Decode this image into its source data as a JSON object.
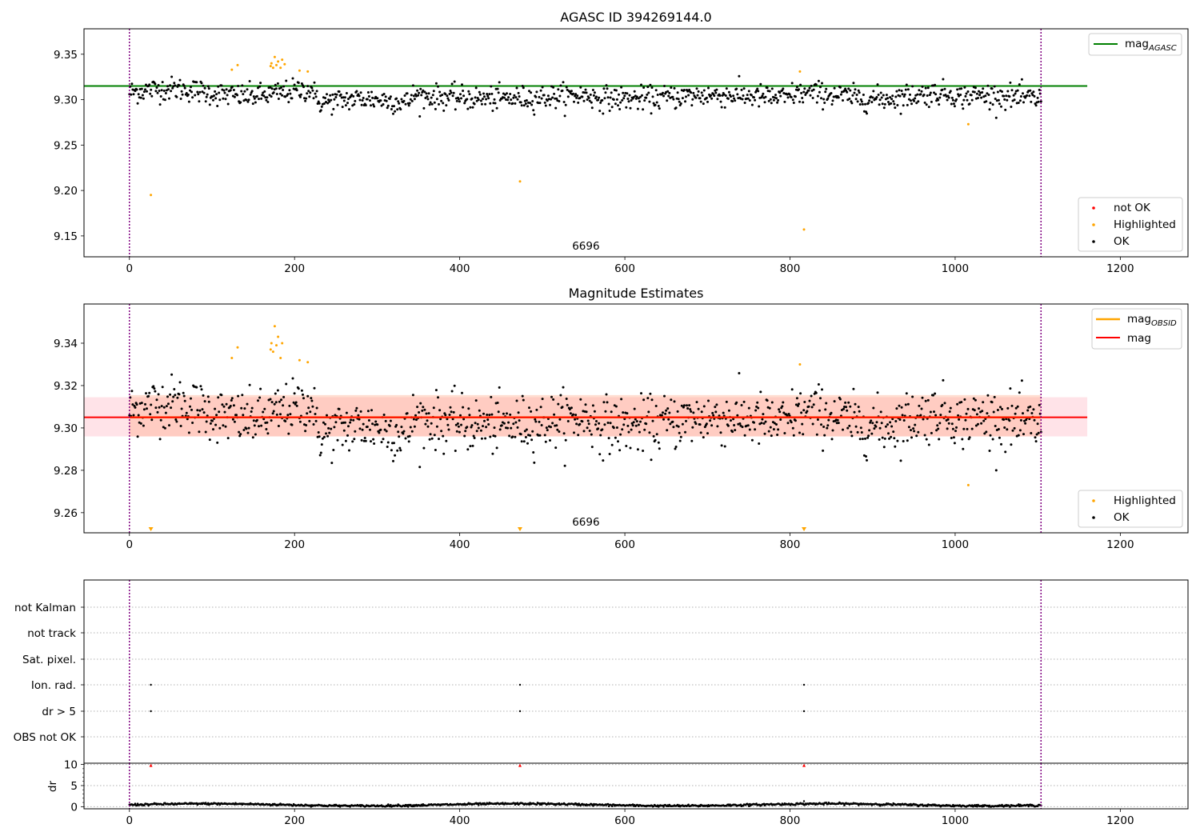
{
  "chart_data": [
    {
      "type": "scatter",
      "panel": "agasc",
      "title": "AGASC ID 394269144.0",
      "xlim": [
        -55,
        1282
      ],
      "ylim": [
        9.127,
        9.378
      ],
      "xticks": [
        0,
        200,
        400,
        600,
        800,
        1000,
        1200
      ],
      "yticks": [
        9.15,
        9.2,
        9.25,
        9.3,
        9.35
      ],
      "ytick_labels": [
        "9.15",
        "9.20",
        "9.25",
        "9.30",
        "9.35"
      ],
      "obs_bounds": [
        0,
        1104
      ],
      "obs_label": {
        "text": "6696",
        "x": 552
      },
      "reference_lines": [
        {
          "name": "mag_AGASC",
          "label_main": "mag",
          "label_sub": "AGASC",
          "y": 9.315,
          "x_range": [
            -55,
            1160
          ],
          "color": "#008000"
        }
      ],
      "highlighted_points": [
        [
          26,
          9.195
        ],
        [
          124,
          9.333
        ],
        [
          131,
          9.338
        ],
        [
          171,
          9.337
        ],
        [
          172,
          9.34
        ],
        [
          174,
          9.335
        ],
        [
          176,
          9.347
        ],
        [
          178,
          9.338
        ],
        [
          180,
          9.342
        ],
        [
          183,
          9.335
        ],
        [
          185,
          9.344
        ],
        [
          188,
          9.339
        ],
        [
          206,
          9.332
        ],
        [
          216,
          9.331
        ],
        [
          473,
          9.21
        ],
        [
          812,
          9.331
        ],
        [
          817,
          9.157
        ],
        [
          1016,
          9.273
        ]
      ],
      "ok_series": {
        "name": "OK",
        "x_range": [
          0,
          1104
        ],
        "count": 1100,
        "center": 9.305,
        "spread": 0.008
      },
      "legend_lower": [
        {
          "label": "not OK",
          "color": "#ff0000"
        },
        {
          "label": "Highlighted",
          "color": "#ffa500"
        },
        {
          "label": "OK",
          "color": "#000000"
        }
      ]
    },
    {
      "type": "scatter",
      "panel": "estimates",
      "title": "Magnitude Estimates",
      "xlim": [
        -55,
        1282
      ],
      "ylim": [
        9.2505,
        9.3585
      ],
      "xticks": [
        0,
        200,
        400,
        600,
        800,
        1000,
        1200
      ],
      "yticks": [
        9.26,
        9.28,
        9.3,
        9.32,
        9.34
      ],
      "ytick_labels": [
        "9.26",
        "9.28",
        "9.30",
        "9.32",
        "9.34"
      ],
      "obs_bounds": [
        0,
        1104
      ],
      "obs_label": {
        "text": "6696",
        "x": 552
      },
      "mag": 9.305,
      "band_outer": [
        9.296,
        9.3145
      ],
      "band_inner": [
        9.296,
        9.3155
      ],
      "mag_obsid": 9.305,
      "off_scale_markers_x": [
        26,
        473,
        817
      ],
      "highlighted_points": [
        [
          124,
          9.333
        ],
        [
          131,
          9.338
        ],
        [
          171,
          9.337
        ],
        [
          172,
          9.34
        ],
        [
          174,
          9.336
        ],
        [
          176,
          9.348
        ],
        [
          178,
          9.339
        ],
        [
          180,
          9.343
        ],
        [
          183,
          9.333
        ],
        [
          185,
          9.34
        ],
        [
          206,
          9.332
        ],
        [
          216,
          9.331
        ],
        [
          812,
          9.33
        ],
        [
          1016,
          9.273
        ]
      ],
      "ok_series": {
        "name": "OK",
        "x_range": [
          0,
          1104
        ],
        "count": 1100,
        "center": 9.305,
        "spread": 0.008
      },
      "legend_upper": [
        {
          "label_main": "mag",
          "label_sub": "OBSID",
          "color": "#ffa500"
        },
        {
          "label_main": "mag",
          "label_sub": "",
          "color": "#ff0000"
        }
      ],
      "legend_lower": [
        {
          "label": "Highlighted",
          "color": "#ffa500"
        },
        {
          "label": "OK",
          "color": "#000000"
        }
      ]
    },
    {
      "type": "scatter",
      "panel": "flags",
      "xlim": [
        -55,
        1282
      ],
      "xticks": [
        0,
        200,
        400,
        600,
        800,
        1000,
        1200
      ],
      "obs_bounds": [
        0,
        1104
      ],
      "flag_rows": [
        "not Kalman",
        "not track",
        "Sat. pixel.",
        "Ion. rad.",
        "dr > 5",
        "OBS not OK"
      ],
      "flag_points": {
        "Ion. rad.": [
          26,
          473,
          817
        ],
        "dr > 5": [
          26,
          473,
          817
        ]
      }
    },
    {
      "type": "scatter",
      "panel": "dr",
      "ylabel": "dr",
      "xlim": [
        -55,
        1282
      ],
      "ylim": [
        -0.5,
        10.3
      ],
      "yticks": [
        0,
        5,
        10
      ],
      "ytick_labels": [
        "0",
        "5",
        "10"
      ],
      "xticks": [
        0,
        200,
        400,
        600,
        800,
        1000,
        1200
      ],
      "xtick_labels": [
        "0",
        "200",
        "400",
        "600",
        "800",
        "1000",
        "1200"
      ],
      "obs_bounds": [
        0,
        1104
      ],
      "clipped_markers_x": [
        26,
        473,
        817
      ],
      "outlier_points": [
        [
          817,
          1.3
        ]
      ],
      "dr_series": {
        "x_range": [
          0,
          1104
        ],
        "count": 1100,
        "center": 0.45,
        "spread": 0.25
      }
    }
  ]
}
